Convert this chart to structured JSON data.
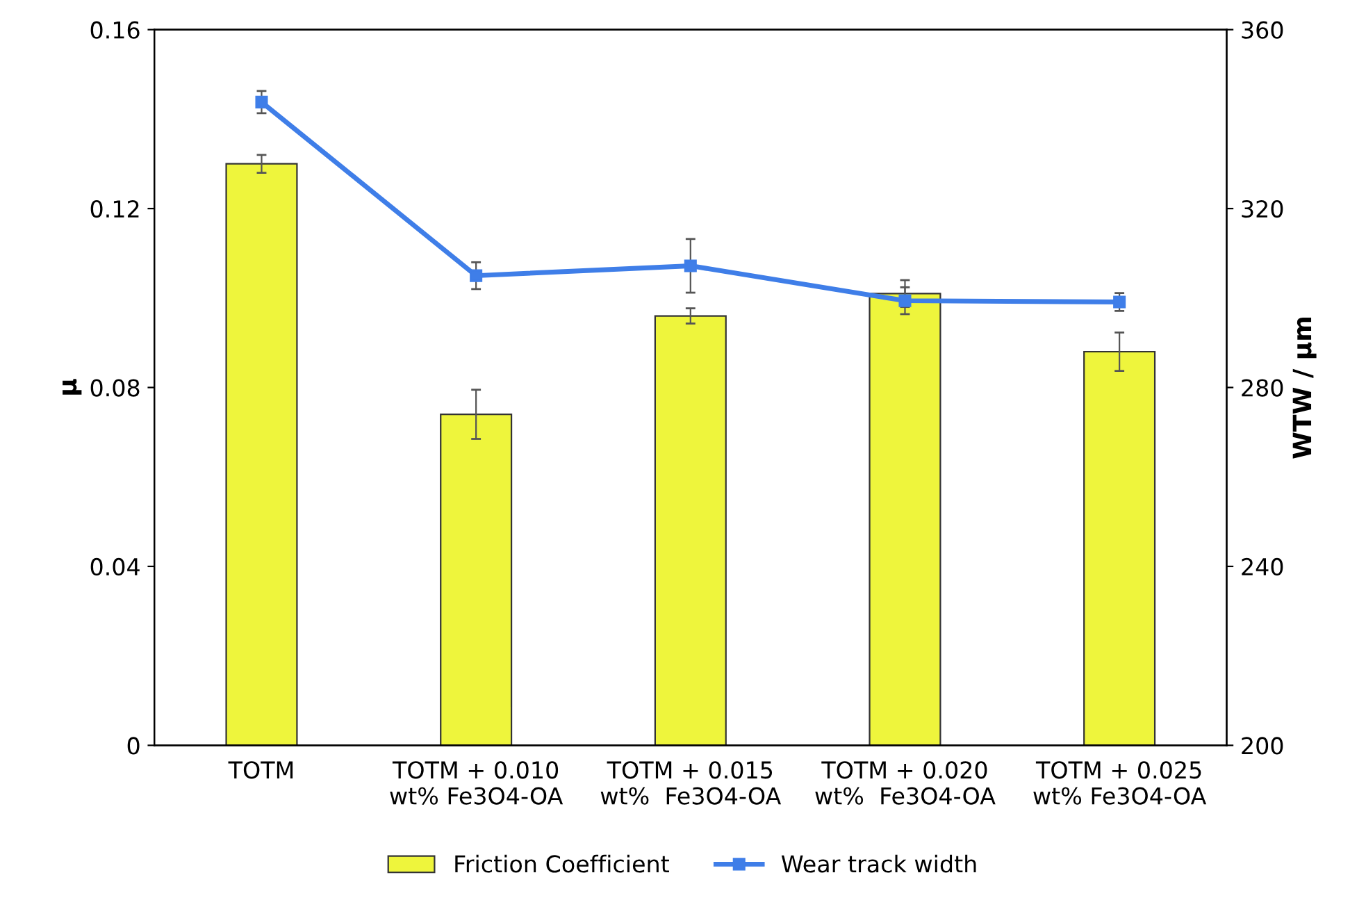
{
  "chart_data": {
    "type": "bar",
    "ylabel": "μ",
    "y2label": "WTW / μm",
    "categories": [
      "TOTM",
      "TOTM + 0.010\nwt% Fe3O4-OA",
      "TOTM + 0.015\nwt%  Fe3O4-OA",
      "TOTM + 0.020\nwt%  Fe3O4-OA",
      "TOTM + 0.025\nwt% Fe3O4-OA"
    ],
    "series": [
      {
        "name": "Friction Coefficient",
        "color": "#eef53c",
        "values": [
          0.13,
          0.074,
          0.096,
          0.101,
          0.088
        ],
        "errors": [
          0.002,
          0.0055,
          0.0017,
          0.003,
          0.0043
        ]
      },
      {
        "name": "Wear track width",
        "type": "line",
        "axis": "y2",
        "color": "#3f7ee8",
        "marker": "square",
        "values": [
          343.8,
          305.0,
          307.2,
          299.4,
          299.1
        ],
        "errors": [
          2.5,
          3,
          6,
          3,
          2
        ]
      }
    ],
    "ylim": [
      0,
      0.16
    ],
    "yticks": [
      0,
      0.04,
      0.08,
      0.12,
      0.16
    ],
    "y2lim": [
      200,
      360
    ],
    "y2ticks": [
      200,
      240,
      280,
      320,
      360
    ],
    "grid": false,
    "legend": "bottom"
  }
}
